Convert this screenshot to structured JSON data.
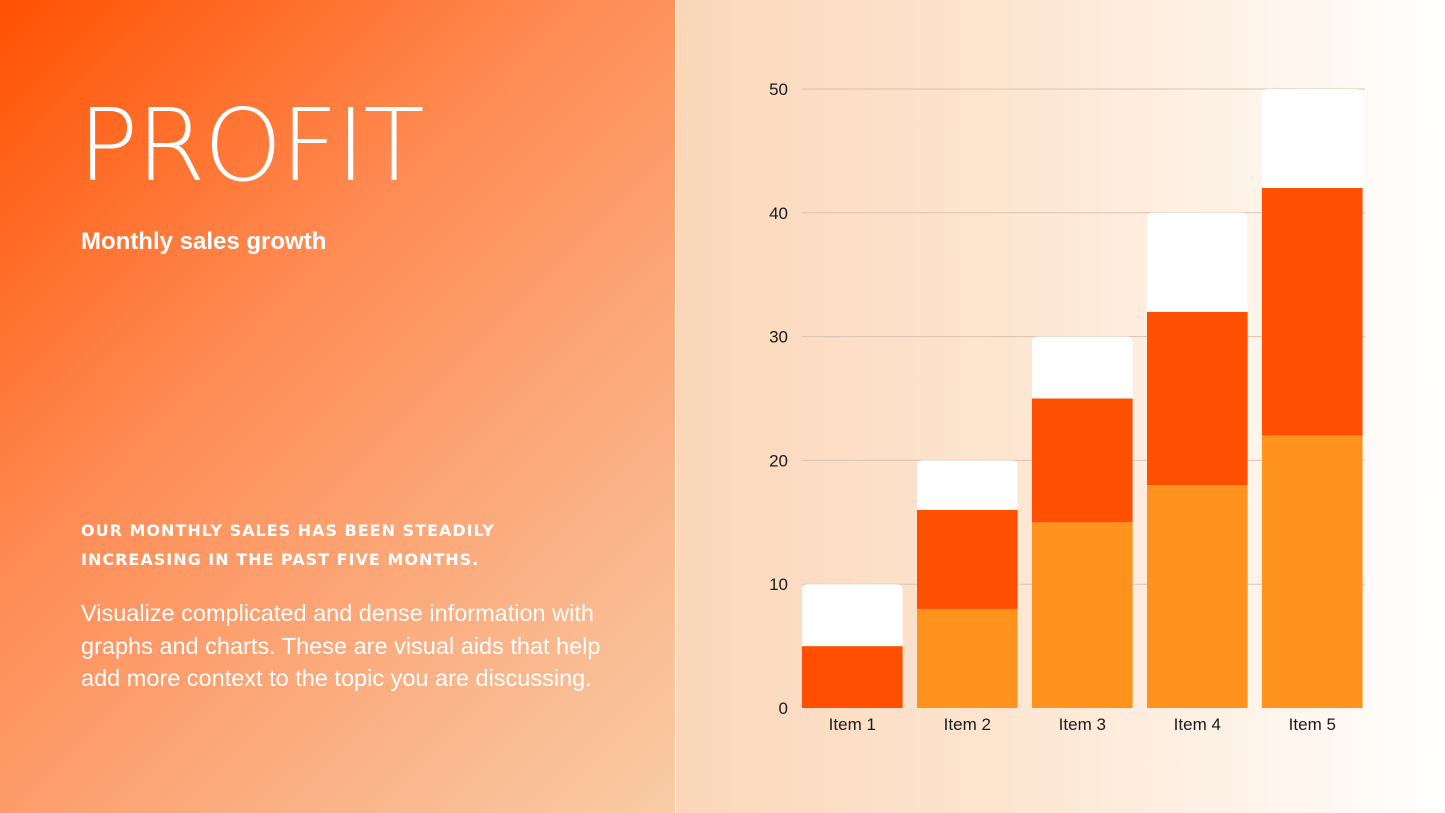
{
  "slide": {
    "title": "PROFIT",
    "subtitle": "Monthly sales growth",
    "highlight": "OUR MONTHLY SALES HAS BEEN STEADILY INCREASING IN THE PAST FIVE MONTHS.",
    "body": "Visualize complicated and dense information with graphs and charts. These are visual aids that help add more context to the topic you are discussing."
  },
  "colors": {
    "series_bottom": "#ff931e",
    "series_middle": "#ff4f00",
    "series_top": "#ffffff",
    "grid": "#d9c3b0",
    "text": "#1a1a1a"
  },
  "chart_data": {
    "type": "bar",
    "stacked": true,
    "categories": [
      "Item 1",
      "Item 2",
      "Item 3",
      "Item 4",
      "Item 5"
    ],
    "series": [
      {
        "values": [
          0,
          8,
          15,
          18,
          22
        ]
      },
      {
        "values": [
          5,
          8,
          10,
          14,
          20
        ]
      },
      {
        "values": [
          5,
          4,
          5,
          8,
          8
        ]
      }
    ],
    "yticks": [
      0,
      10,
      20,
      30,
      40,
      50
    ],
    "ylim": [
      0,
      50
    ],
    "grid": true
  }
}
